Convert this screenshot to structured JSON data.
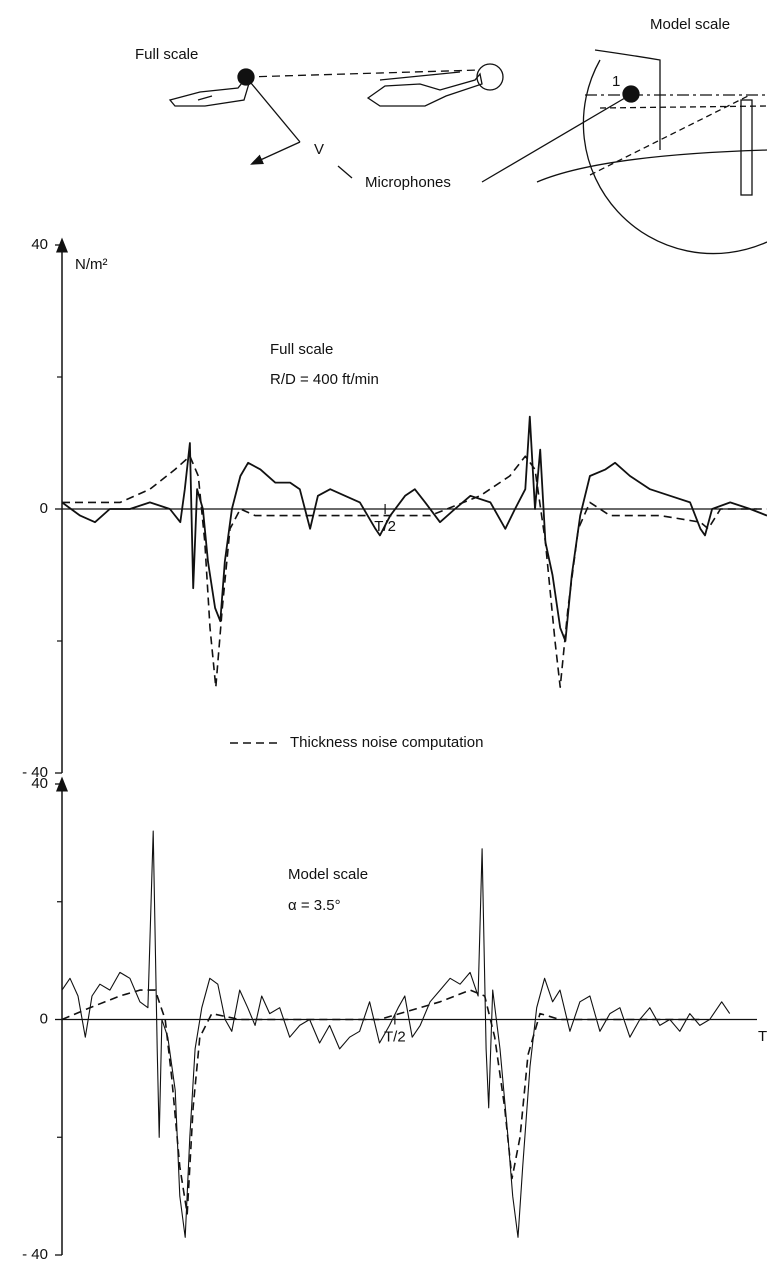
{
  "diagram": {
    "full_scale": "Full scale",
    "model_scale": "Model scale",
    "mic_number": "1",
    "velocity": "V",
    "microphones": "Microphones"
  },
  "chart_data": [
    {
      "type": "line",
      "ylabel": "N/m²",
      "annotations": [
        "Full scale",
        "R/D = 400 ft/min"
      ],
      "xlim": [
        0,
        1.091
      ],
      "xticks": [
        {
          "value": 0.5,
          "label": "T/2"
        }
      ],
      "ylim": [
        -40,
        40
      ],
      "yticks": [
        40,
        0,
        {
          "value": -40,
          "label": "- 40"
        }
      ],
      "minor_yticks": [
        20,
        -20
      ],
      "series": [
        {
          "color": "#111111",
          "dash": false,
          "x": [
            0,
            0.028,
            0.051,
            0.074,
            0.105,
            0.136,
            0.167,
            0.183,
            0.19,
            0.198,
            0.203,
            0.209,
            0.218,
            0.226,
            0.237,
            0.245,
            0.252,
            0.263,
            0.276,
            0.288,
            0.307,
            0.33,
            0.353,
            0.368,
            0.384,
            0.396,
            0.415,
            0.438,
            0.461,
            0.485,
            0.492,
            0.508,
            0.531,
            0.546,
            0.562,
            0.585,
            0.608,
            0.632,
            0.663,
            0.686,
            0.701,
            0.717,
            0.724,
            0.732,
            0.74,
            0.748,
            0.759,
            0.771,
            0.779,
            0.789,
            0.802,
            0.817,
            0.841,
            0.856,
            0.879,
            0.91,
            0.941,
            0.972,
            0.988,
            0.995,
            1.006,
            1.034,
            1.065,
            1.091
          ],
          "values": [
            1,
            -1,
            -2,
            0,
            0,
            1,
            0,
            -2,
            3,
            10,
            -12,
            3,
            0,
            -8,
            -15,
            -17,
            -8,
            0,
            5,
            7,
            6,
            4,
            4,
            3,
            -3,
            2,
            3,
            2,
            1,
            -3,
            -4,
            -1,
            2,
            3,
            1,
            -2,
            0,
            2,
            1,
            -3,
            0,
            3,
            14,
            0,
            9,
            -5,
            -10,
            -18,
            -20,
            -10,
            -1,
            5,
            6,
            7,
            5,
            3,
            2,
            1,
            -3,
            -4,
            0,
            1,
            0,
            -1
          ]
        },
        {
          "name": "Thickness noise computation",
          "color": "#111111",
          "dash": true,
          "x": [
            0,
            0.09,
            0.136,
            0.175,
            0.198,
            0.211,
            0.221,
            0.229,
            0.238,
            0.248,
            0.26,
            0.276,
            0.299,
            0.368,
            0.492,
            0.57,
            0.647,
            0.693,
            0.717,
            0.732,
            0.748,
            0.763,
            0.771,
            0.783,
            0.799,
            0.817,
            0.848,
            0.926,
            0.988,
            1.0,
            1.019,
            1.091
          ],
          "values": [
            1,
            1,
            3,
            6,
            8,
            5,
            -5,
            -18,
            -27,
            -15,
            -3,
            0,
            -1,
            -1,
            -1,
            -1,
            2,
            5,
            8,
            6,
            -5,
            -20,
            -27,
            -15,
            -3,
            1,
            -1,
            -1,
            -2,
            -3,
            0,
            0
          ]
        }
      ]
    },
    {
      "type": "line",
      "xlabel": "T",
      "annotations": [
        "Model scale",
        "α = 3.5°"
      ],
      "xlim": [
        0,
        1.059
      ],
      "xticks": [
        {
          "value": 0.5,
          "label": "T/2"
        }
      ],
      "ylim": [
        -40,
        40
      ],
      "yticks": [
        40,
        0,
        {
          "value": -40,
          "label": "- 40"
        }
      ],
      "minor_yticks": [
        20,
        -20
      ],
      "series": [
        {
          "color": "#111111",
          "dash": false,
          "x": [
            0,
            0.012,
            0.024,
            0.035,
            0.045,
            0.057,
            0.072,
            0.087,
            0.102,
            0.117,
            0.129,
            0.137,
            0.143,
            0.146,
            0.15,
            0.159,
            0.17,
            0.177,
            0.185,
            0.192,
            0.2,
            0.21,
            0.222,
            0.234,
            0.245,
            0.255,
            0.267,
            0.279,
            0.29,
            0.3,
            0.312,
            0.327,
            0.342,
            0.357,
            0.372,
            0.387,
            0.402,
            0.417,
            0.432,
            0.447,
            0.462,
            0.477,
            0.492,
            0.505,
            0.515,
            0.526,
            0.538,
            0.553,
            0.568,
            0.583,
            0.598,
            0.613,
            0.625,
            0.631,
            0.637,
            0.641,
            0.647,
            0.658,
            0.67,
            0.677,
            0.685,
            0.692,
            0.703,
            0.713,
            0.725,
            0.737,
            0.748,
            0.763,
            0.778,
            0.793,
            0.808,
            0.823,
            0.838,
            0.853,
            0.868,
            0.883,
            0.898,
            0.913,
            0.928,
            0.943,
            0.958,
            0.973,
            0.991,
            1.003
          ],
          "values": [
            5,
            7,
            4,
            -3,
            4,
            6,
            5,
            8,
            7,
            3,
            2,
            32,
            -5,
            -20,
            0,
            -3,
            -12,
            -30,
            -37,
            -20,
            -5,
            2,
            7,
            6,
            0,
            -2,
            5,
            2,
            -1,
            4,
            1,
            2,
            -3,
            -1,
            0,
            -4,
            -1,
            -5,
            -3,
            -2,
            3,
            -4,
            -1,
            2,
            4,
            -3,
            -1,
            3,
            5,
            7,
            6,
            8,
            4,
            29,
            -5,
            -15,
            5,
            -5,
            -20,
            -30,
            -37,
            -25,
            -8,
            2,
            7,
            3,
            5,
            -2,
            3,
            4,
            -2,
            1,
            2,
            -3,
            0,
            2,
            -1,
            0,
            -2,
            1,
            -1,
            0,
            3,
            1
          ]
        },
        {
          "color": "#111111",
          "dash": true,
          "x": [
            0,
            0.042,
            0.087,
            0.117,
            0.14,
            0.155,
            0.165,
            0.177,
            0.188,
            0.197,
            0.207,
            0.225,
            0.267,
            0.357,
            0.477,
            0.568,
            0.613,
            0.635,
            0.65,
            0.665,
            0.676,
            0.688,
            0.7,
            0.718,
            0.748,
            0.838,
            0.958
          ],
          "values": [
            0,
            2,
            4,
            5,
            5,
            0,
            -10,
            -25,
            -33,
            -15,
            -3,
            1,
            0,
            0,
            0,
            3,
            5,
            4,
            -3,
            -15,
            -27,
            -20,
            -6,
            1,
            0,
            0,
            0
          ]
        }
      ]
    }
  ]
}
